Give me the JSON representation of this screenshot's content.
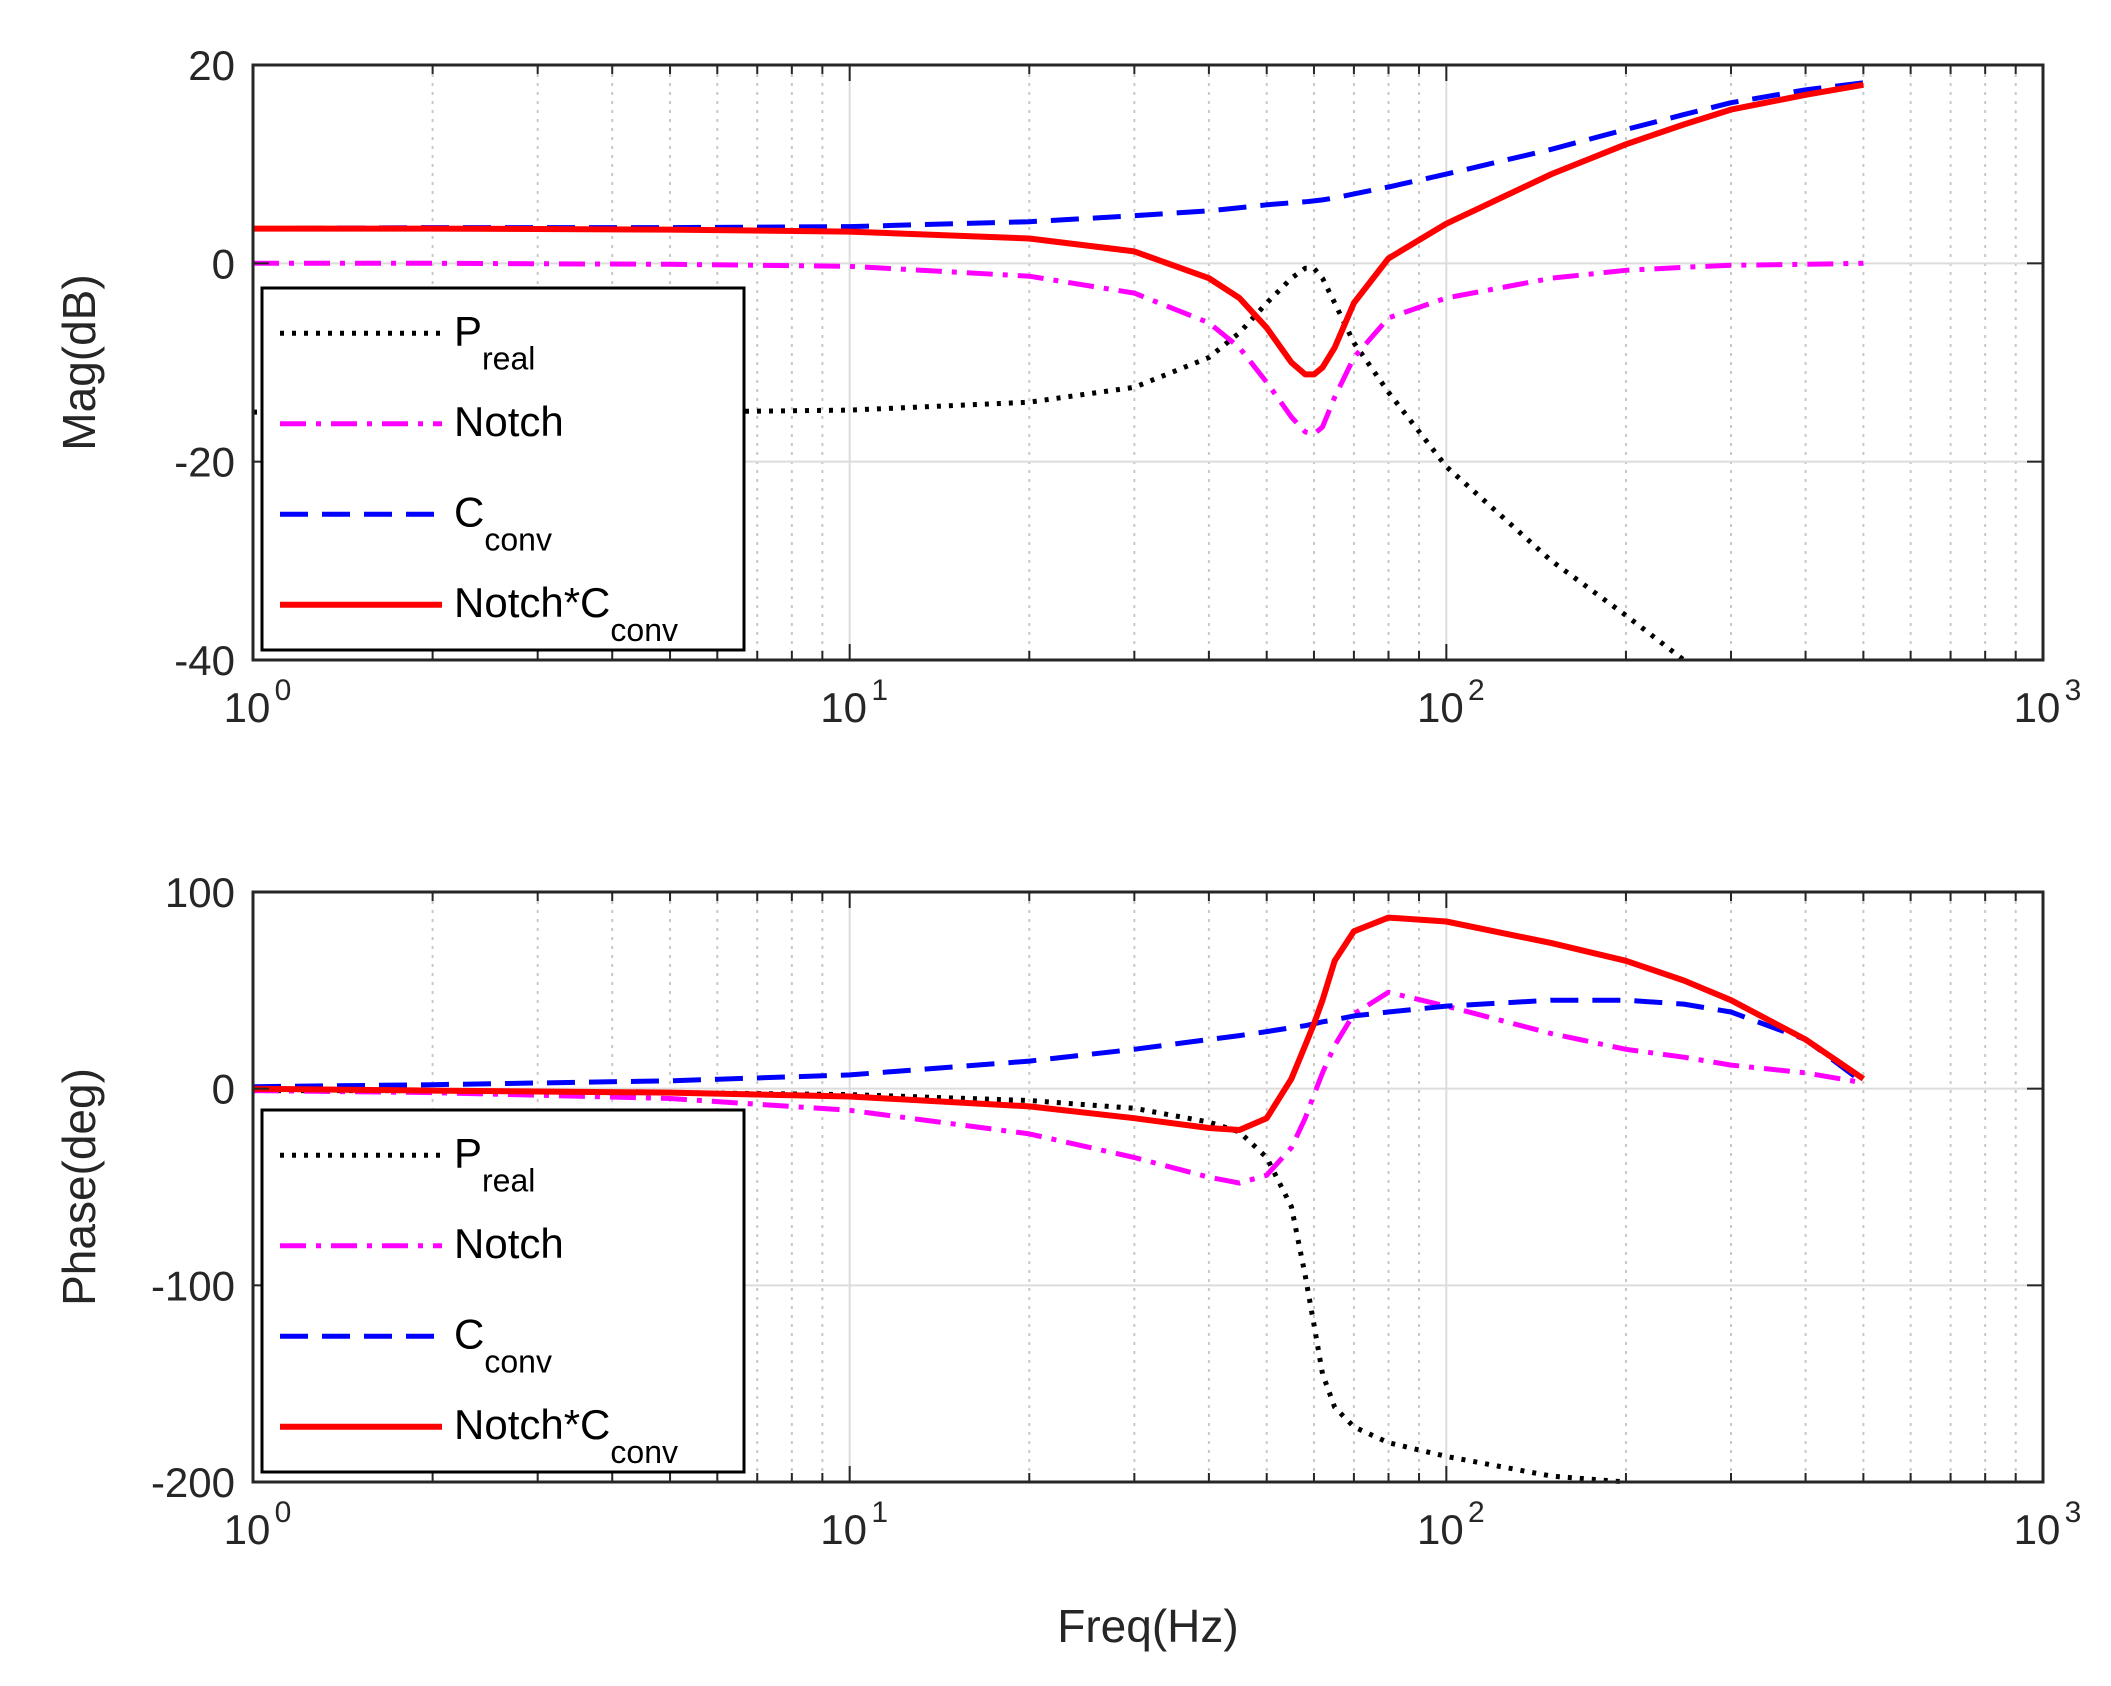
{
  "chart_data": [
    {
      "type": "line",
      "panel": "magnitude",
      "xscale": "log",
      "xlim": [
        1,
        1000
      ],
      "ylim": [
        -40,
        20
      ],
      "xlabel": "",
      "ylabel": "Mag(dB)",
      "x_ticks": [
        {
          "base": "10",
          "exp": "0"
        },
        {
          "base": "10",
          "exp": "1"
        },
        {
          "base": "10",
          "exp": "2"
        },
        {
          "base": "10",
          "exp": "3"
        }
      ],
      "y_ticks": [
        "20",
        "0",
        "-20",
        "-40"
      ],
      "y_tick_values": [
        20,
        0,
        -20,
        -40
      ],
      "grid": true,
      "legend_position": "left",
      "x": [
        1,
        2,
        5,
        10,
        20,
        30,
        40,
        45,
        50,
        55,
        58,
        60,
        62,
        65,
        70,
        80,
        100,
        150,
        200,
        250,
        300,
        400,
        500
      ],
      "series": [
        {
          "name": "Preal",
          "label": "P",
          "sub": "real",
          "color": "#000000",
          "dash": "dotted",
          "values": [
            -15,
            -15,
            -15,
            -14.8,
            -14,
            -12.5,
            -9.5,
            -7,
            -4,
            -1.5,
            -0.5,
            -0.5,
            -1.5,
            -4,
            -8,
            -13,
            -20.5,
            -30,
            -35.5,
            -40,
            null,
            null,
            null
          ]
        },
        {
          "name": "Notch",
          "label": "Notch",
          "sub": "",
          "color": "#ff00ff",
          "dash": "dashdot",
          "values": [
            0,
            0,
            -0.1,
            -0.3,
            -1.3,
            -3,
            -6,
            -8.5,
            -12,
            -15.5,
            -17,
            -17.2,
            -16.5,
            -13.5,
            -9.5,
            -5.5,
            -3.5,
            -1.5,
            -0.7,
            -0.4,
            -0.2,
            -0.1,
            0
          ]
        },
        {
          "name": "Cconv",
          "label": "C",
          "sub": "conv",
          "color": "#0000ff",
          "dash": "dashed",
          "values": [
            3.5,
            3.6,
            3.6,
            3.7,
            4.2,
            4.8,
            5.3,
            5.6,
            5.9,
            6.1,
            6.2,
            6.3,
            6.4,
            6.6,
            7,
            7.7,
            9,
            11.5,
            13.5,
            15,
            16.2,
            17.5,
            18.2
          ]
        },
        {
          "name": "Notch*Cconv",
          "label": "Notch*C",
          "sub": "conv",
          "color": "#ff0000",
          "dash": "solid",
          "values": [
            3.5,
            3.5,
            3.4,
            3.2,
            2.5,
            1.2,
            -1.5,
            -3.5,
            -6.5,
            -10,
            -11.2,
            -11.2,
            -10.5,
            -8.5,
            -4,
            0.5,
            4,
            9,
            12,
            14,
            15.5,
            17,
            18
          ]
        }
      ]
    },
    {
      "type": "line",
      "panel": "phase",
      "xscale": "log",
      "xlim": [
        1,
        1000
      ],
      "ylim": [
        -200,
        100
      ],
      "xlabel": "Freq(Hz)",
      "ylabel": "Phase(deg)",
      "x_ticks": [
        {
          "base": "10",
          "exp": "0"
        },
        {
          "base": "10",
          "exp": "1"
        },
        {
          "base": "10",
          "exp": "2"
        },
        {
          "base": "10",
          "exp": "3"
        }
      ],
      "y_ticks": [
        "100",
        "0",
        "-100",
        "-200"
      ],
      "y_tick_values": [
        100,
        0,
        -100,
        -200
      ],
      "grid": true,
      "legend_position": "left",
      "x": [
        1,
        2,
        5,
        10,
        20,
        30,
        40,
        45,
        50,
        55,
        58,
        60,
        62,
        65,
        70,
        80,
        100,
        150,
        200,
        250,
        300,
        400,
        500
      ],
      "series": [
        {
          "name": "Preal",
          "label": "P",
          "sub": "real",
          "color": "#000000",
          "dash": "dotted",
          "values": [
            -1,
            -1,
            -2,
            -3,
            -6,
            -10,
            -17,
            -22,
            -35,
            -60,
            -95,
            -120,
            -145,
            -162,
            -172,
            -180,
            -187,
            -197,
            -201,
            null,
            null,
            null,
            null
          ]
        },
        {
          "name": "Notch",
          "label": "Notch",
          "sub": "",
          "color": "#ff00ff",
          "dash": "dashdot",
          "values": [
            -1,
            -2,
            -5,
            -11,
            -23,
            -35,
            -45,
            -48,
            -44,
            -30,
            -15,
            -3,
            8,
            22,
            38,
            49,
            42,
            28,
            20,
            16,
            12,
            8,
            3
          ]
        },
        {
          "name": "Cconv",
          "label": "C",
          "sub": "conv",
          "color": "#0000ff",
          "dash": "dashed",
          "values": [
            1,
            2,
            4,
            7,
            14,
            20,
            25,
            27,
            29,
            31,
            32,
            33,
            34,
            35,
            37,
            39,
            42,
            45,
            45,
            43,
            39,
            25,
            3
          ]
        },
        {
          "name": "Notch*Cconv",
          "label": "Notch*C",
          "sub": "conv",
          "color": "#ff0000",
          "dash": "solid",
          "values": [
            0,
            -1,
            -2,
            -4,
            -9,
            -15,
            -20,
            -21,
            -15,
            5,
            22,
            33,
            45,
            65,
            80,
            87,
            85,
            74,
            65,
            55,
            45,
            25,
            5
          ]
        }
      ]
    }
  ]
}
